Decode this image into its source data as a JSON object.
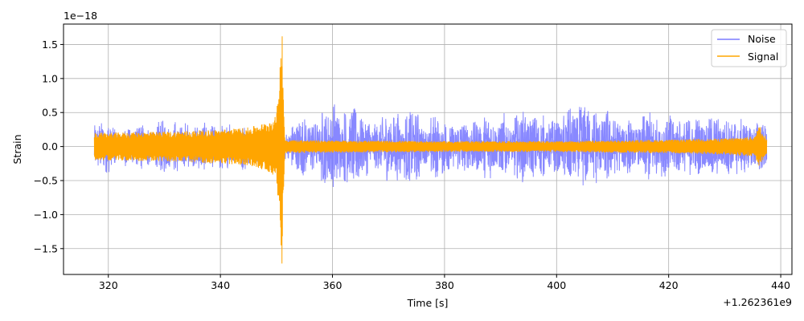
{
  "chart_data": {
    "type": "line",
    "xlabel": "Time [s]",
    "ylabel": "Strain",
    "x_offset_label": "+1.262361e9",
    "y_scale_label": "1e−18",
    "xlim": [
      312,
      442
    ],
    "ylim": [
      -1.88,
      1.8
    ],
    "x_ticks": [
      320,
      340,
      360,
      380,
      400,
      420,
      440
    ],
    "x_tick_labels": [
      "320",
      "340",
      "360",
      "380",
      "400",
      "420",
      "440"
    ],
    "y_ticks": [
      -1.5,
      -1.0,
      -0.5,
      0.0,
      0.5,
      1.0,
      1.5
    ],
    "y_tick_labels": [
      "−1.5",
      "−1.0",
      "−0.5",
      "0.0",
      "0.5",
      "1.0",
      "1.5"
    ],
    "grid": true,
    "legend_position": "top-right",
    "x_range": [
      317.5,
      437.5
    ],
    "series": [
      {
        "name": "Noise",
        "color": "#7b7bff",
        "description_points": {
          "x": [
            317.5,
            325,
            335,
            345,
            351,
            356,
            360.5,
            370,
            380,
            390,
            398,
            405,
            412,
            420,
            427,
            437.5
          ],
          "envelope": [
            0.3,
            0.33,
            0.3,
            0.28,
            0.28,
            0.38,
            0.55,
            0.42,
            0.38,
            0.45,
            0.38,
            0.5,
            0.42,
            0.4,
            0.38,
            0.3
          ]
        }
      },
      {
        "name": "Signal",
        "color": "#ffa500",
        "description_points": {
          "x": [
            317.5,
            330,
            340,
            345,
            348,
            350,
            351,
            351.5,
            360,
            380,
            400,
            420,
            430,
            435.5,
            436,
            437.5
          ],
          "envelope": [
            0.2,
            0.22,
            0.25,
            0.28,
            0.35,
            0.45,
            1.65,
            0.1,
            0.09,
            0.08,
            0.08,
            0.1,
            0.12,
            0.15,
            0.35,
            0.12
          ]
        }
      }
    ]
  }
}
